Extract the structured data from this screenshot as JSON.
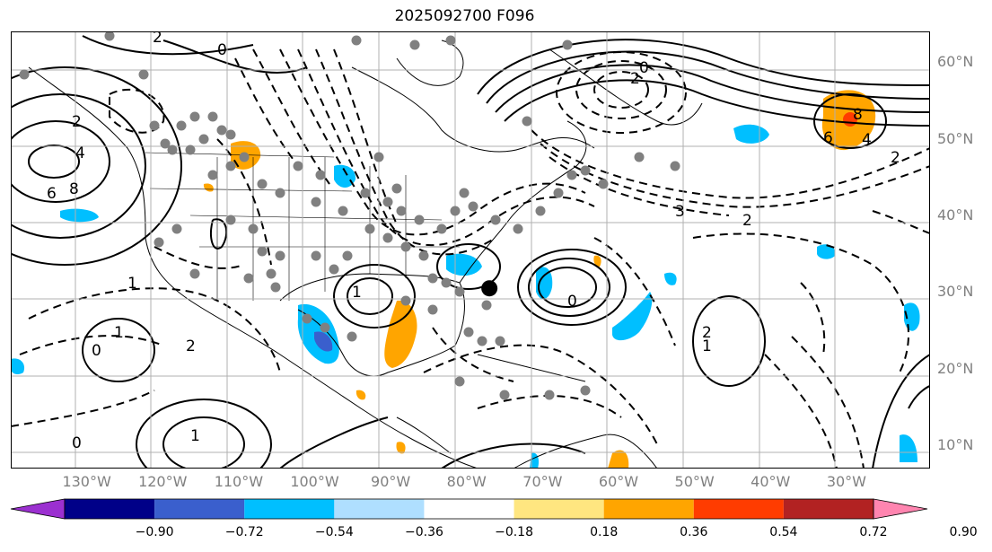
{
  "title": "2025092700 F096",
  "lat_labels": [
    "60°N",
    "50°N",
    "40°N",
    "30°N",
    "20°N",
    "10°N"
  ],
  "lat_values": [
    60,
    50,
    40,
    30,
    20,
    10
  ],
  "lon_labels": [
    "130°W",
    "120°W",
    "110°W",
    "100°W",
    "90°W",
    "80°W",
    "70°W",
    "60°W",
    "50°W",
    "40°W",
    "30°W"
  ],
  "lon_values": [
    -130,
    -120,
    -110,
    -100,
    -90,
    -80,
    -70,
    -60,
    -50,
    -40,
    -30
  ],
  "map_extent": {
    "lon_min": -140,
    "lon_max": -19,
    "lat_min": 7,
    "lat_max": 64
  },
  "grid": true,
  "contour_labels": [
    "2",
    "0",
    "2",
    "4",
    "6",
    "8",
    "8",
    "6",
    "4",
    "2",
    "0",
    "2",
    "1",
    "0",
    "1",
    "2",
    "0",
    "1",
    "3",
    "2",
    "1",
    "0",
    "2",
    "1"
  ],
  "colorbar": {
    "ticks": [
      "−0.90",
      "−0.72",
      "−0.54",
      "−0.36",
      "−0.18",
      "0.18",
      "0.36",
      "0.54",
      "0.72",
      "0.90"
    ],
    "colors": [
      "#9b30d0",
      "#000088",
      "#3a5fcd",
      "#00bfff",
      "#afdfff",
      "#ffffff",
      "#ffe680",
      "#ffa500",
      "#ff3c00",
      "#b22222",
      "#ff85b0"
    ]
  },
  "marker_color": "#808080",
  "highlight_marker": {
    "lon": -77,
    "lat": 30.5,
    "color": "#000000"
  }
}
